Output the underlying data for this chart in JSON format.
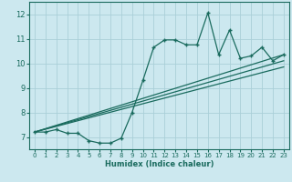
{
  "xlabel": "Humidex (Indice chaleur)",
  "bg_color": "#cce8ef",
  "line_color": "#1a6b5e",
  "grid_color": "#aacfd8",
  "xlim": [
    -0.5,
    23.5
  ],
  "ylim": [
    6.5,
    12.5
  ],
  "xticks": [
    0,
    1,
    2,
    3,
    4,
    5,
    6,
    7,
    8,
    9,
    10,
    11,
    12,
    13,
    14,
    15,
    16,
    17,
    18,
    19,
    20,
    21,
    22,
    23
  ],
  "yticks": [
    7,
    8,
    9,
    10,
    11,
    12
  ],
  "series1_x": [
    0,
    1,
    2,
    3,
    4,
    5,
    6,
    7,
    8,
    9,
    10,
    11,
    12,
    13,
    14,
    15,
    16,
    17,
    18,
    19,
    20,
    21,
    22,
    23
  ],
  "series1_y": [
    7.2,
    7.2,
    7.3,
    7.15,
    7.15,
    6.85,
    6.75,
    6.75,
    6.95,
    8.0,
    9.3,
    10.65,
    10.95,
    10.95,
    10.75,
    10.75,
    12.05,
    10.35,
    11.35,
    10.2,
    10.3,
    10.65,
    10.1,
    10.35
  ],
  "trend1_x": [
    0,
    23
  ],
  "trend1_y": [
    7.2,
    10.35
  ],
  "trend2_x": [
    0,
    23
  ],
  "trend2_y": [
    7.2,
    10.1
  ],
  "trend3_x": [
    0,
    23
  ],
  "trend3_y": [
    7.2,
    9.85
  ]
}
